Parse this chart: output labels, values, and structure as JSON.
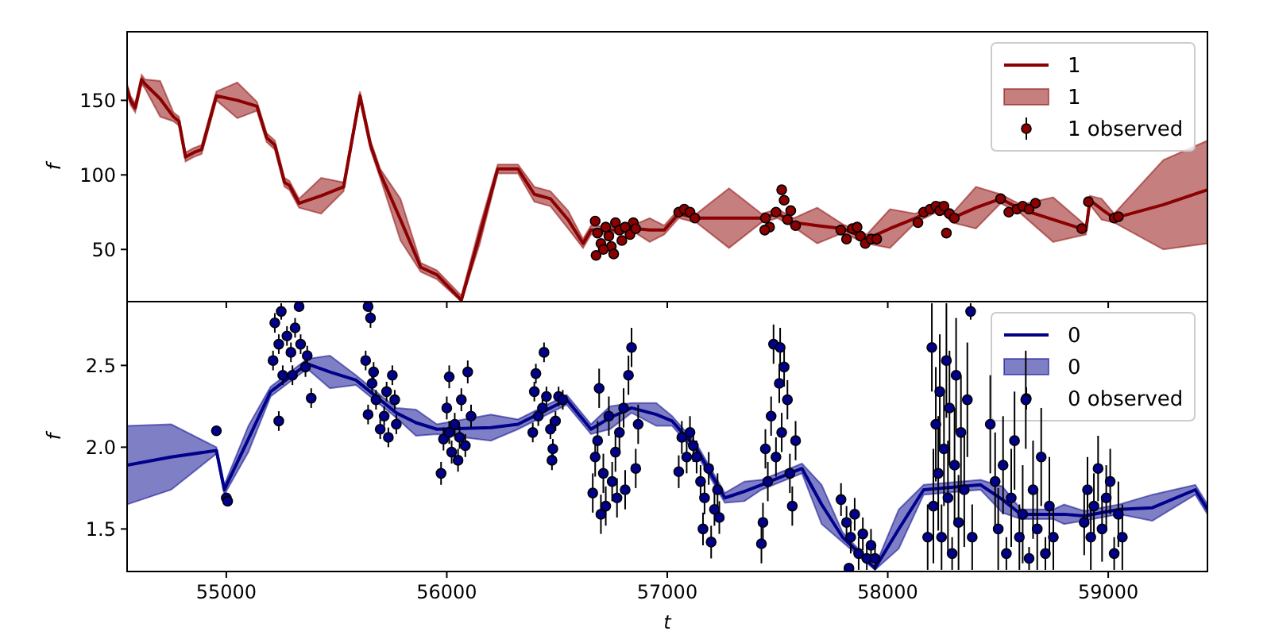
{
  "chart_data": [
    {
      "type": "line",
      "ylabel": "f",
      "xlim": [
        54550,
        59450
      ],
      "ylim": [
        15,
        196
      ],
      "xticks": [
        55000,
        56000,
        57000,
        58000,
        59000
      ],
      "yticks": [
        50,
        100,
        150
      ],
      "tick_labels": "y",
      "legend": "top right",
      "line_style": "solid",
      "grid": false,
      "series": [
        {
          "name": "1",
          "marker": "none",
          "color": "#8b0000",
          "x": [
            54550,
            54565,
            54587,
            54616,
            54631,
            54700,
            54760,
            54785,
            54815,
            54852,
            54888,
            54955,
            55050,
            55139,
            55183,
            55220,
            55264,
            55286,
            55330,
            55430,
            55532,
            55606,
            55654,
            55698,
            55790,
            55882,
            55955,
            56066,
            56150,
            56231,
            56323,
            56397,
            56470,
            56550,
            56618,
            56654,
            56750,
            56857,
            56920,
            56986,
            57052,
            57133,
            57280,
            57427,
            57501,
            57574,
            57680,
            57795,
            57905,
            58010,
            58126,
            58236,
            58292,
            58400,
            58512,
            58604,
            58750,
            58899,
            58917,
            58970,
            59027,
            59250,
            59450
          ],
          "values": [
            158,
            150,
            145,
            164,
            161,
            151,
            139,
            136,
            112,
            115,
            117,
            153,
            150,
            146,
            125,
            120,
            95,
            93,
            81,
            86,
            92,
            153,
            120,
            101,
            70,
            38,
            33,
            16,
            60,
            104,
            104,
            87,
            84,
            70,
            54,
            63,
            63,
            64,
            63,
            63,
            74,
            71,
            71,
            71,
            74,
            68,
            66,
            64,
            57,
            64,
            71,
            79,
            71,
            78,
            84,
            77,
            70,
            63,
            83,
            77,
            71,
            80,
            90
          ],
          "lower": [
            155,
            147,
            142,
            161,
            158,
            139,
            136,
            133,
            109,
            112,
            114,
            150,
            138,
            143,
            122,
            117,
            92,
            90,
            78,
            74,
            89,
            150,
            117,
            98,
            56,
            35,
            30,
            15,
            54,
            101,
            101,
            82,
            79,
            64,
            51,
            60,
            61,
            61,
            55,
            60,
            71,
            68,
            51,
            68,
            71,
            65,
            54,
            61,
            54,
            51,
            68,
            76,
            68,
            64,
            81,
            74,
            55,
            60,
            80,
            70,
            68,
            50,
            54
          ],
          "upper": [
            161,
            153,
            148,
            167,
            164,
            163,
            142,
            139,
            115,
            118,
            120,
            156,
            162,
            149,
            128,
            123,
            98,
            96,
            84,
            98,
            95,
            156,
            123,
            104,
            84,
            41,
            36,
            19,
            66,
            107,
            107,
            92,
            89,
            76,
            57,
            66,
            65,
            67,
            71,
            66,
            77,
            74,
            91,
            74,
            77,
            71,
            78,
            67,
            60,
            77,
            74,
            82,
            74,
            92,
            87,
            80,
            85,
            66,
            86,
            84,
            74,
            110,
            123
          ]
        },
        {
          "name": "1 observed",
          "type": "scatter",
          "marker": "circle",
          "color": "#8b0000",
          "x": [
            56673,
            56684,
            56699,
            56677,
            56721,
            56735,
            56746,
            56765,
            56783,
            56794,
            56809,
            56831,
            56846,
            56857,
            56757,
            56710,
            57052,
            57077,
            57103,
            57125,
            57445,
            57464,
            57493,
            57519,
            57530,
            57545,
            57560,
            57582,
            57442,
            57787,
            57813,
            57839,
            57861,
            57876,
            57898,
            57924,
            57950,
            58137,
            58163,
            58192,
            58218,
            58236,
            58255,
            58266,
            58280,
            58302,
            58512,
            58549,
            58586,
            58612,
            58641,
            58670,
            58880,
            58910,
            59027,
            59046
          ],
          "values": [
            69,
            61,
            54,
            46,
            65,
            59,
            52,
            68,
            63,
            56,
            65,
            60,
            68,
            64,
            47,
            50,
            75,
            77,
            75,
            71,
            71,
            65,
            75,
            90,
            83,
            70,
            76,
            66,
            63,
            63,
            57,
            64,
            65,
            59,
            54,
            57,
            57,
            68,
            75,
            77,
            79,
            76,
            79,
            61,
            74,
            71,
            84,
            75,
            77,
            79,
            77,
            81,
            64,
            82,
            71,
            72
          ]
        }
      ]
    },
    {
      "type": "line",
      "xlabel": "t",
      "ylabel": "f",
      "xlim": [
        54550,
        59450
      ],
      "ylim": [
        1.24,
        2.89
      ],
      "xticks": [
        55000,
        56000,
        57000,
        58000,
        59000
      ],
      "yticks": [
        1.5,
        {
          "value": 2,
          "label": "2.0"
        },
        2.5
      ],
      "legend": "top right",
      "line_style": "solid",
      "grid": false,
      "series": [
        {
          "name": "0",
          "marker": "none",
          "color": "#00008b",
          "x": [
            54550,
            54750,
            54955,
            54991,
            55100,
            55201,
            55367,
            55470,
            55588,
            55771,
            55860,
            55955,
            56200,
            56323,
            56544,
            56654,
            56740,
            56838,
            56950,
            57022,
            57133,
            57261,
            57350,
            57427,
            57611,
            57700,
            57795,
            57942,
            58050,
            58163,
            58421,
            58520,
            58604,
            58752,
            58800,
            58891,
            59050,
            59200,
            59395,
            59450
          ],
          "values": [
            1.89,
            1.94,
            1.98,
            1.74,
            2.05,
            2.34,
            2.51,
            2.46,
            2.41,
            2.21,
            2.15,
            2.11,
            2.12,
            2.14,
            2.29,
            2.11,
            2.18,
            2.24,
            2.2,
            2.16,
            1.99,
            1.69,
            1.73,
            1.77,
            1.87,
            1.65,
            1.45,
            1.26,
            1.5,
            1.74,
            1.77,
            1.68,
            1.59,
            1.59,
            1.59,
            1.58,
            1.62,
            1.63,
            1.74,
            1.62
          ],
          "lower": [
            1.65,
            1.74,
            1.96,
            1.71,
            1.97,
            2.31,
            2.48,
            2.36,
            2.38,
            2.18,
            2.07,
            2.08,
            2.04,
            2.11,
            2.26,
            2.08,
            2.11,
            2.21,
            2.13,
            2.13,
            1.96,
            1.66,
            1.67,
            1.74,
            1.84,
            1.53,
            1.42,
            1.25,
            1.38,
            1.71,
            1.74,
            1.6,
            1.56,
            1.56,
            1.53,
            1.55,
            1.59,
            1.55,
            1.71,
            1.59
          ],
          "upper": [
            2.13,
            2.14,
            2,
            1.77,
            2.13,
            2.37,
            2.54,
            2.56,
            2.44,
            2.24,
            2.23,
            2.14,
            2.2,
            2.17,
            2.32,
            2.14,
            2.25,
            2.27,
            2.27,
            2.19,
            2.02,
            1.72,
            1.79,
            1.8,
            1.9,
            1.77,
            1.48,
            1.27,
            1.62,
            1.77,
            1.8,
            1.76,
            1.62,
            1.62,
            1.65,
            1.61,
            1.65,
            1.71,
            1.77,
            1.65
          ]
        },
        {
          "name": "0 observed",
          "type": "scatter",
          "marker": "circle",
          "color": "#00008b",
          "x": [
            54955,
            55000,
            55006,
            55220,
            55238,
            55212,
            55256,
            55275,
            55293,
            55312,
            55337,
            55359,
            55385,
            55238,
            55330,
            55249,
            55300,
            55367,
            55643,
            55654,
            55632,
            55643,
            55661,
            55679,
            55698,
            55716,
            55735,
            55753,
            55764,
            55771,
            55668,
            55727,
            55974,
            55985,
            56000,
            56011,
            56022,
            56036,
            56051,
            56066,
            56084,
            56095,
            56110,
            56011,
            56058,
            56390,
            56397,
            56404,
            56415,
            56434,
            56441,
            56452,
            56470,
            56481,
            56493,
            56507,
            56526,
            56477,
            56662,
            56673,
            56684,
            56691,
            56710,
            56721,
            56735,
            56750,
            56765,
            56783,
            56802,
            56809,
            56824,
            56838,
            56857,
            56868,
            56772,
            56699,
            57052,
            57066,
            57088,
            57103,
            57118,
            57133,
            57151,
            57169,
            57188,
            57199,
            57214,
            57228,
            57236,
            57162,
            57427,
            57434,
            57445,
            57456,
            57471,
            57482,
            57493,
            57508,
            57519,
            57530,
            57545,
            57556,
            57567,
            57582,
            57512,
            57788,
            57813,
            57832,
            57850,
            57868,
            57887,
            57905,
            57924,
            57942,
            57824,
            58181,
            58200,
            58207,
            58218,
            58229,
            58236,
            58244,
            58255,
            58266,
            58273,
            58280,
            58292,
            58303,
            58310,
            58321,
            58332,
            58347,
            58361,
            58376,
            58383,
            58465,
            58487,
            58501,
            58523,
            58538,
            58560,
            58575,
            58597,
            58612,
            58626,
            58641,
            58659,
            58678,
            58696,
            58715,
            58733,
            58751,
            58891,
            58906,
            58921,
            58935,
            58954,
            58972,
            58991,
            59009,
            59027,
            59046,
            59064
          ],
          "values": [
            2.1,
            1.69,
            1.67,
            2.76,
            2.63,
            2.53,
            2.44,
            2.68,
            2.58,
            2.73,
            2.63,
            2.49,
            2.3,
            2.16,
            2.86,
            2.83,
            2.44,
            2.56,
            2.86,
            2.79,
            2.53,
            2.2,
            2.39,
            2.29,
            2.11,
            2.19,
            2.06,
            2.44,
            2.29,
            2.14,
            2.46,
            2.34,
            1.84,
            2.05,
            2.24,
            2.43,
            1.97,
            2.14,
            1.92,
            2.29,
            2.01,
            2.46,
            2.19,
            2.09,
            2.06,
            2.09,
            2.34,
            2.45,
            2.19,
            2.24,
            2.58,
            2.31,
            2.11,
            1.99,
            2.16,
            2.31,
            2.29,
            1.92,
            1.72,
            1.94,
            2.04,
            2.36,
            1.84,
            1.64,
            2.19,
            1.79,
            1.97,
            2.09,
            2.24,
            1.74,
            2.44,
            2.61,
            1.87,
            2.14,
            1.69,
            1.59,
            1.85,
            2.06,
            1.94,
            2.09,
            2.01,
            1.94,
            1.79,
            1.69,
            1.87,
            1.42,
            1.62,
            1.74,
            1.57,
            1.5,
            1.41,
            1.54,
            1.99,
            1.79,
            2.19,
            2.63,
            1.94,
            2.39,
            2.09,
            2.49,
            2.29,
            1.84,
            1.64,
            2.04,
            2.61,
            1.68,
            1.54,
            1.45,
            1.59,
            1.35,
            1.47,
            1.32,
            1.4,
            1.32,
            1.26,
            1.45,
            2.61,
            1.64,
            2.14,
            1.84,
            2.34,
            1.45,
            1.99,
            2.53,
            1.69,
            2.24,
            1.35,
            1.89,
            2.44,
            1.54,
            2.09,
            1.74,
            2.29,
            2.83,
            1.45,
            2.14,
            1.79,
            1.5,
            1.89,
            1.35,
            1.69,
            2.04,
            1.45,
            1.59,
            2.29,
            1.32,
            1.74,
            1.5,
            1.94,
            1.35,
            1.64,
            1.45,
            1.54,
            1.74,
            1.45,
            1.64,
            1.87,
            1.5,
            1.69,
            1.79,
            1.35,
            1.59,
            1.45
          ],
          "errors": [
            0.03,
            0.03,
            0.03,
            0.06,
            0.06,
            0.06,
            0.06,
            0.06,
            0.06,
            0.06,
            0.06,
            0.06,
            0.06,
            0.06,
            0.02,
            0.05,
            0.06,
            0.06,
            0.02,
            0.06,
            0.06,
            0.06,
            0.06,
            0.06,
            0.06,
            0.06,
            0.06,
            0.06,
            0.06,
            0.06,
            0.06,
            0.06,
            0.07,
            0.07,
            0.07,
            0.07,
            0.07,
            0.07,
            0.07,
            0.07,
            0.07,
            0.07,
            0.07,
            0.07,
            0.07,
            0.06,
            0.06,
            0.06,
            0.06,
            0.06,
            0.06,
            0.06,
            0.06,
            0.06,
            0.06,
            0.06,
            0.06,
            0.06,
            0.12,
            0.12,
            0.12,
            0.12,
            0.12,
            0.12,
            0.12,
            0.12,
            0.12,
            0.12,
            0.12,
            0.12,
            0.12,
            0.12,
            0.12,
            0.12,
            0.12,
            0.12,
            0.1,
            0.1,
            0.1,
            0.1,
            0.1,
            0.1,
            0.1,
            0.1,
            0.1,
            0.1,
            0.1,
            0.1,
            0.1,
            0.1,
            0.12,
            0.12,
            0.12,
            0.12,
            0.12,
            0.12,
            0.12,
            0.12,
            0.12,
            0.12,
            0.12,
            0.12,
            0.12,
            0.12,
            0.12,
            0.1,
            0.1,
            0.1,
            0.1,
            0.1,
            0.1,
            0.07,
            0.1,
            0.07,
            null,
            0.2,
            0.27,
            0.35,
            0.35,
            0.35,
            0.35,
            0.2,
            0.35,
            0.35,
            0.35,
            0.35,
            0.1,
            0.35,
            0.35,
            0.29,
            0.35,
            0.35,
            0.35,
            0.05,
            0.2,
            0.3,
            0.3,
            0.25,
            0.3,
            0.1,
            0.3,
            0.3,
            0.2,
            0.3,
            0.3,
            0.07,
            0.3,
            0.25,
            0.3,
            0.1,
            0.3,
            0.2,
            0.2,
            0.2,
            0.2,
            0.2,
            0.2,
            0.2,
            0.2,
            0.2,
            0.1,
            0.2,
            0.2
          ]
        }
      ]
    }
  ]
}
